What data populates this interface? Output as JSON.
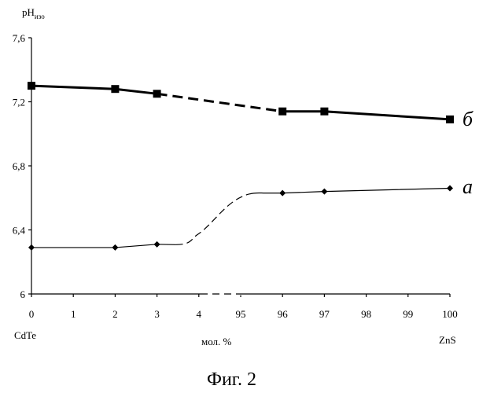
{
  "chart_data": {
    "type": "line",
    "ylabel_main": "pH",
    "ylabel_sub": "изо",
    "xlabel": "мол. %",
    "x_left_label": "CdTe",
    "x_right_label": "ZnS",
    "caption": "Фиг. 2",
    "ylim": [
      6.0,
      7.6
    ],
    "y_ticks": [
      "6",
      "6,4",
      "6,8",
      "7,2",
      "7,6"
    ],
    "y_tick_values": [
      6.0,
      6.4,
      6.8,
      7.2,
      7.6
    ],
    "categories": [
      "0",
      "1",
      "2",
      "3",
      "4",
      "95",
      "96",
      "97",
      "98",
      "99",
      "100"
    ],
    "series": [
      {
        "name": "б",
        "marker": "square",
        "points": [
          {
            "x": 0,
            "y": 7.3
          },
          {
            "x": 2,
            "y": 7.28
          },
          {
            "x": 3,
            "y": 7.25
          },
          {
            "x": 96,
            "y": 7.14
          },
          {
            "x": 97,
            "y": 7.14
          },
          {
            "x": 100,
            "y": 7.09
          }
        ]
      },
      {
        "name": "а",
        "marker": "diamond",
        "points": [
          {
            "x": 0,
            "y": 6.29
          },
          {
            "x": 2,
            "y": 6.29
          },
          {
            "x": 3,
            "y": 6.31
          },
          {
            "x": 96,
            "y": 6.63
          },
          {
            "x": 97,
            "y": 6.64
          },
          {
            "x": 100,
            "y": 6.66
          }
        ]
      }
    ]
  }
}
